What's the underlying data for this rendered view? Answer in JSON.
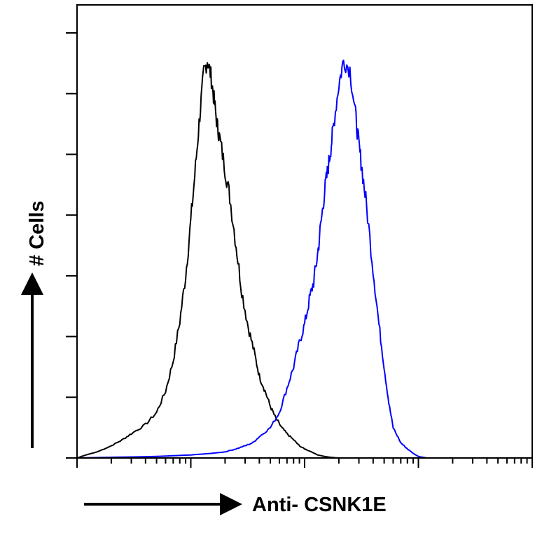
{
  "chart_data": {
    "type": "area",
    "title": "",
    "xlabel": "Anti- CSNK1E",
    "ylabel": "# Cells",
    "x_scale": "log",
    "x_decades": 4,
    "xlim": [
      1,
      10000
    ],
    "ylim": [
      0,
      140
    ],
    "y_ticks": [
      0,
      20,
      40,
      60,
      80,
      100,
      120,
      140
    ],
    "grid": false,
    "legend": "none",
    "series": [
      {
        "color": "#000000",
        "x": [
          1,
          1.2,
          1.5,
          2,
          2.5,
          3,
          4,
          5,
          6,
          7,
          8,
          9,
          10,
          11,
          12,
          13,
          14,
          15,
          16,
          17,
          18,
          20,
          22,
          25,
          28,
          32,
          36,
          40,
          45,
          50,
          56,
          63,
          70,
          80,
          90,
          100,
          115,
          130,
          150,
          170,
          200
        ],
        "y": [
          0,
          1,
          2,
          4,
          6,
          8,
          11,
          15,
          22,
          32,
          45,
          60,
          78,
          96,
          113,
          127,
          131,
          126,
          118,
          110,
          105,
          95,
          86,
          70,
          55,
          43,
          35,
          27,
          22,
          17,
          13,
          10,
          8,
          6,
          4,
          3,
          2,
          1,
          0.5,
          0.2,
          0
        ]
      },
      {
        "color": "#0000ff",
        "x": [
          1,
          5,
          10,
          15,
          20,
          25,
          30,
          35,
          40,
          50,
          60,
          70,
          80,
          90,
          100,
          110,
          120,
          130,
          140,
          150,
          160,
          170,
          180,
          200,
          220,
          250,
          280,
          300,
          320,
          350,
          400,
          450,
          500,
          550,
          600,
          700,
          800,
          900,
          1000,
          1100,
          1200
        ],
        "y": [
          0,
          0.5,
          1,
          1.5,
          2,
          3,
          4,
          5,
          7,
          10,
          15,
          23,
          30,
          38,
          44,
          52,
          58,
          67,
          78,
          88,
          95,
          102,
          110,
          123,
          131,
          128,
          113,
          103,
          95,
          83,
          62,
          44,
          30,
          18,
          10,
          5,
          3,
          1.5,
          0.5,
          0.2,
          0
        ]
      }
    ]
  }
}
